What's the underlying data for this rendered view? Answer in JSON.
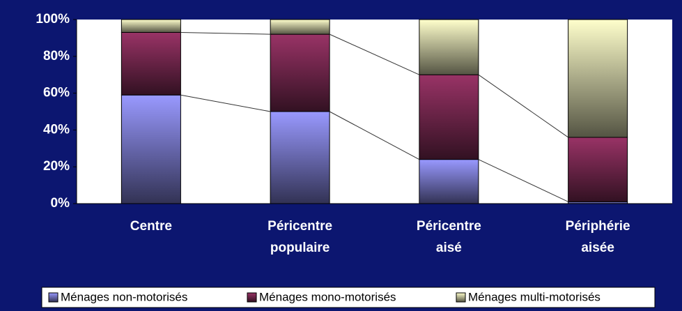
{
  "chart_data": {
    "type": "stacked_bar_percent",
    "categories": [
      "Centre",
      "Péricentre populaire",
      "Péricentre aisé",
      "Périphérie aisée"
    ],
    "series": [
      {
        "name": "Ménages non-motorisés",
        "color": "#9999ff",
        "values": [
          59,
          50,
          24,
          1
        ]
      },
      {
        "name": "Ménages mono-motorisés",
        "color": "#993366",
        "values": [
          34,
          42,
          46,
          35
        ]
      },
      {
        "name": "Ménages multi-motorisés",
        "color": "#ffffcc",
        "values": [
          7,
          8,
          30,
          64
        ]
      }
    ],
    "ylim": [
      0,
      100
    ],
    "yticks": [
      {
        "value": 0,
        "label": "0%"
      },
      {
        "value": 20,
        "label": "20%"
      },
      {
        "value": 40,
        "label": "40%"
      },
      {
        "value": 60,
        "label": "60%"
      },
      {
        "value": 80,
        "label": "80%"
      },
      {
        "value": 100,
        "label": "100%"
      }
    ],
    "grid": false,
    "legend": "bottom",
    "series_lines": true
  }
}
